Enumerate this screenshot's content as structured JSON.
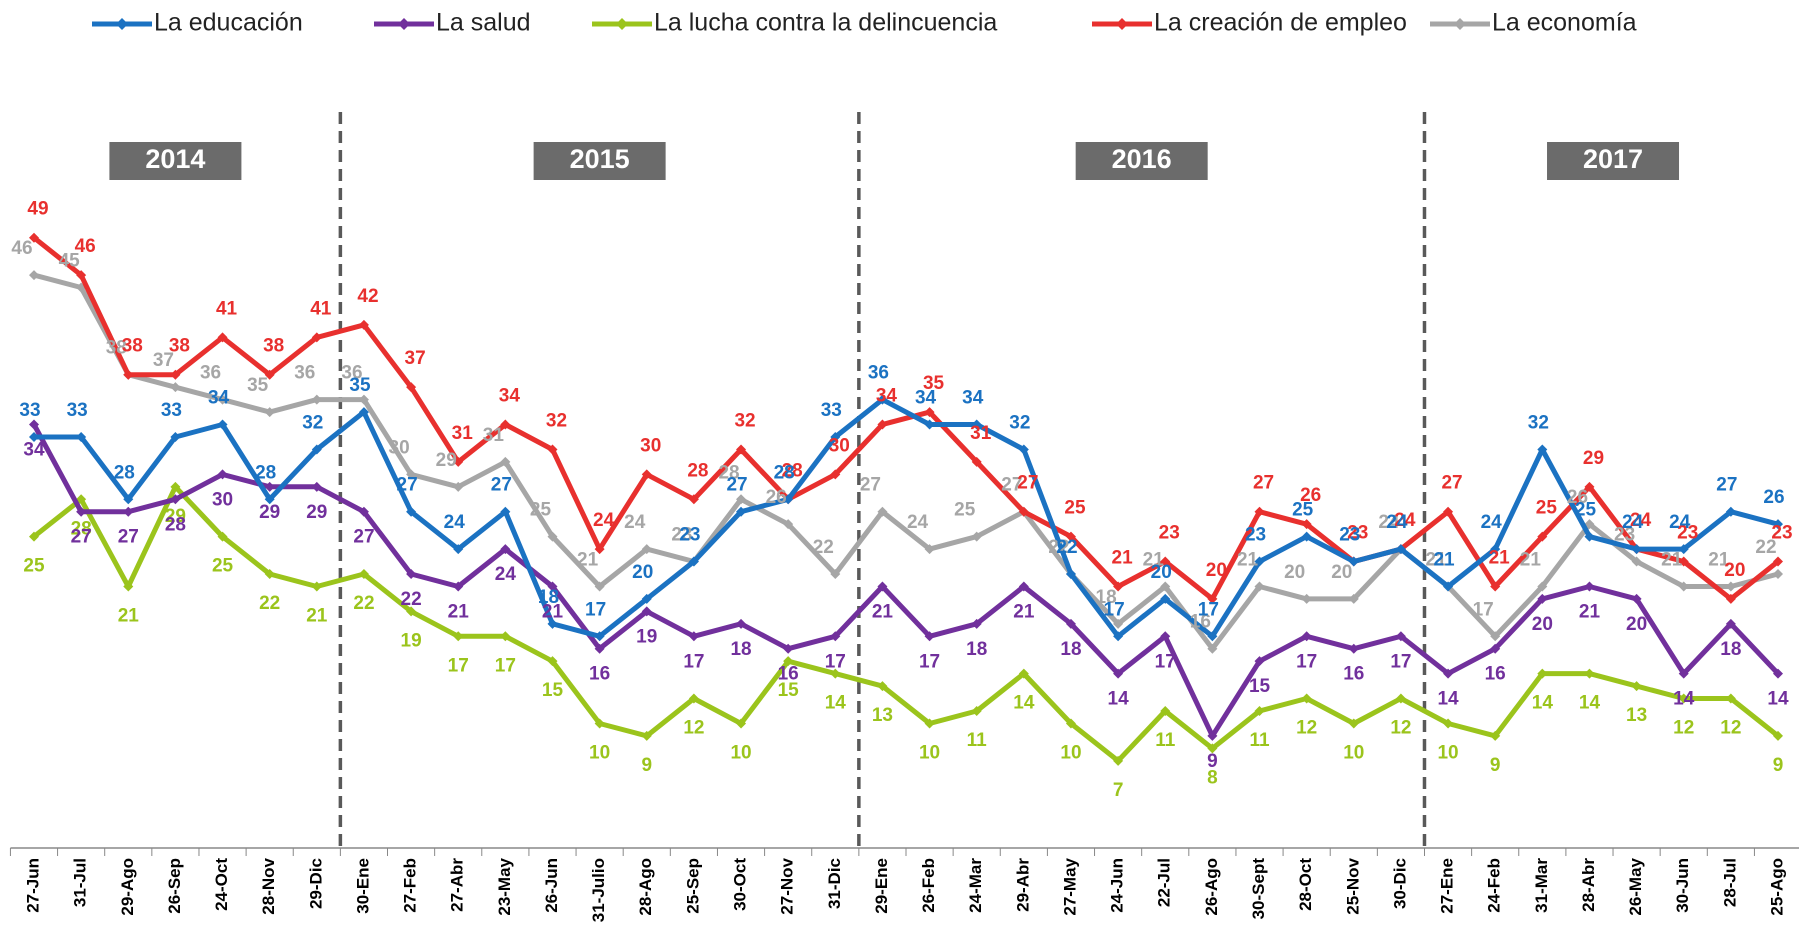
{
  "chart_data": {
    "type": "line",
    "groups": [
      {
        "label": "2014",
        "categories": [
          "27-Jun",
          "31-Jul",
          "29-Ago",
          "26-Sep",
          "24-Oct",
          "28-Nov",
          "29-Dic"
        ]
      },
      {
        "label": "2015",
        "categories": [
          "30-Ene",
          "27-Feb",
          "27-Abr",
          "23-May",
          "26-Jun",
          "31-Julio",
          "28-Ago",
          "25-Sep",
          "30-Oct",
          "27-Nov",
          "31-Dic"
        ]
      },
      {
        "label": "2016",
        "categories": [
          "29-Ene",
          "26-Feb",
          "24-Mar",
          "29-Abr",
          "27-May",
          "24-Jun",
          "22-Jul",
          "26-Ago",
          "30-Sept",
          "28-Oct",
          "25-Nov",
          "30-Dic"
        ]
      },
      {
        "label": "2017",
        "categories": [
          "27-Ene",
          "24-Feb",
          "31-Mar",
          "28-Abr",
          "26-May",
          "30-Jun",
          "28-Jul",
          "25-Ago"
        ]
      }
    ],
    "series": [
      {
        "name": "La educación",
        "color": "#1b72c2",
        "values": [
          33,
          33,
          28,
          33,
          34,
          28,
          32,
          35,
          27,
          24,
          27,
          18,
          17,
          20,
          23,
          27,
          28,
          33,
          36,
          34,
          34,
          32,
          22,
          17,
          20,
          17,
          23,
          25,
          23,
          24,
          21,
          24,
          32,
          25,
          24,
          24,
          27,
          26
        ]
      },
      {
        "name": "La salud",
        "color": "#71309c",
        "values": [
          34,
          27,
          27,
          28,
          30,
          29,
          29,
          27,
          22,
          21,
          24,
          21,
          16,
          19,
          17,
          18,
          16,
          17,
          21,
          17,
          18,
          21,
          18,
          14,
          17,
          9,
          15,
          17,
          16,
          17,
          14,
          16,
          20,
          21,
          20,
          14,
          18,
          14
        ]
      },
      {
        "name": "La lucha contra la delincuencia",
        "color": "#9bc41c",
        "values": [
          25,
          28,
          21,
          29,
          25,
          22,
          21,
          22,
          19,
          17,
          17,
          15,
          10,
          9,
          12,
          10,
          15,
          14,
          13,
          10,
          11,
          14,
          10,
          7,
          11,
          8,
          11,
          12,
          10,
          12,
          10,
          9,
          14,
          14,
          13,
          12,
          12,
          9
        ]
      },
      {
        "name": "La creación de empleo",
        "color": "#e8302e",
        "values": [
          49,
          46,
          38,
          38,
          41,
          38,
          41,
          42,
          37,
          31,
          34,
          32,
          24,
          30,
          28,
          32,
          28,
          30,
          34,
          35,
          31,
          27,
          25,
          21,
          23,
          20,
          27,
          26,
          23,
          24,
          27,
          21,
          25,
          29,
          24,
          23,
          20,
          23
        ]
      },
      {
        "name": "La economía",
        "color": "#a6a6a6",
        "values": [
          46,
          45,
          38,
          37,
          36,
          35,
          36,
          36,
          30,
          29,
          31,
          25,
          21,
          24,
          23,
          28,
          26,
          22,
          27,
          24,
          25,
          27,
          22,
          18,
          21,
          16,
          21,
          20,
          20,
          24,
          21,
          17,
          21,
          26,
          23,
          21,
          21,
          22
        ]
      }
    ],
    "ylim": [
      0,
      55
    ]
  }
}
